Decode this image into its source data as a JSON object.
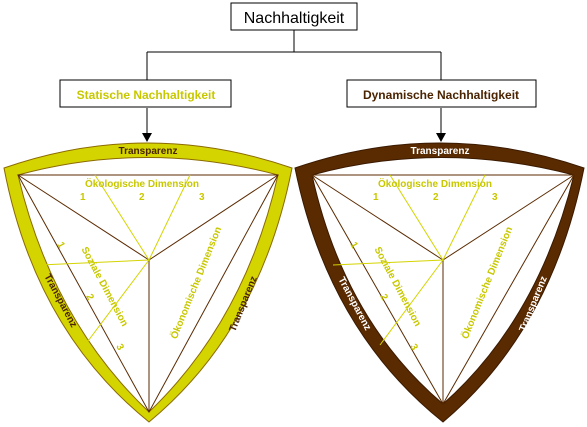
{
  "title": "Nachhaltigkeit",
  "colors": {
    "static": "#d4d400",
    "static_text": "#c8c800",
    "dynamic": "#5a2a00",
    "dynamic_text": "#4a2300",
    "connector": "#000000"
  },
  "static": {
    "label": "Statische Nachhaltigkeit",
    "top_band": "Transparenz",
    "left_band": "Transparenz",
    "right_band": "Transparenz",
    "eco_dim": "Ökologische Dimension",
    "social_dim": "Soziale Dimension",
    "econ_dim": "Ökonomische Dimension",
    "top_nums": [
      "1",
      "2",
      "3"
    ],
    "left_nums": [
      "1",
      "2",
      "3"
    ]
  },
  "dynamic": {
    "label": "Dynamische Nachhaltigkeit",
    "top_band": "Transparenz",
    "left_band": "Transparenz",
    "right_band": "Transparenz",
    "eco_dim": "Ökologische Dimension",
    "social_dim": "Soziale Dimension",
    "econ_dim": "Ökonomische Dimension",
    "top_nums": [
      "1",
      "2",
      "3"
    ],
    "left_nums": [
      "1",
      "2",
      "3"
    ]
  }
}
